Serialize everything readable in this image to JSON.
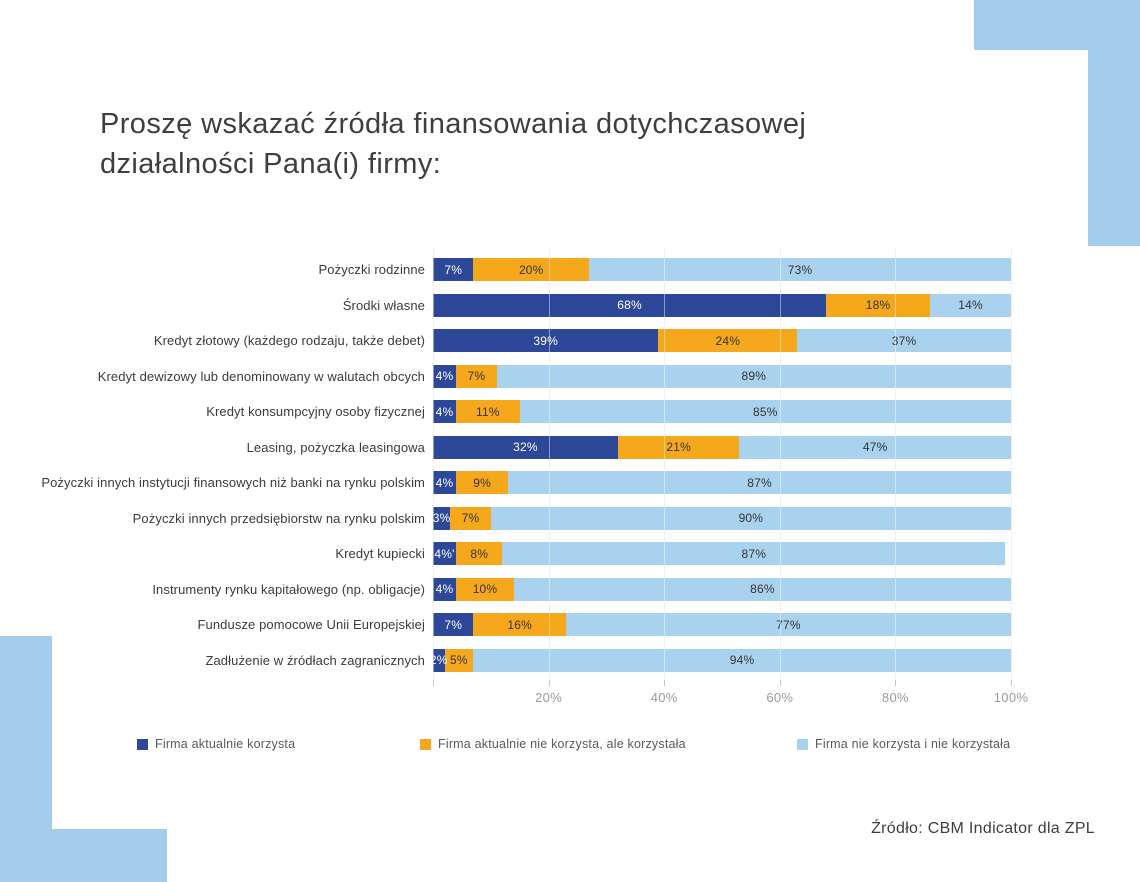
{
  "page": {
    "background": "#ffffff"
  },
  "title_full": "Proszę wskazać źródła finansowania dotychczasowej działalności Pana(i) firmy:",
  "title_lines": [
    "Proszę wskazać źródła finansowania dotychczasowej",
    "działalności Pana(i) firmy:"
  ],
  "source_note": "Źródło: CBM Indicator dla ZPL",
  "colors": {
    "series_current": "#2D4899",
    "series_past": "#F5A81C",
    "series_never": "#A9D2EE",
    "decor_blue": "#A3CDEA",
    "grid": "#E4E4E4",
    "axis_text": "#9B9B9B",
    "category_text": "#3B3B3B"
  },
  "chart_data": {
    "type": "bar",
    "orientation": "horizontal",
    "stacked": true,
    "title": "Proszę wskazać źródła finansowania dotychczasowej działalności Pana(i) firmy:",
    "xlabel": "",
    "ylabel": "",
    "xlim": [
      0,
      100
    ],
    "grid": true,
    "legend_position": "bottom",
    "xtick_values": [
      20,
      40,
      60,
      80,
      100
    ],
    "xtick_labels": [
      "20%",
      "40%",
      "60%",
      "80%",
      "100%"
    ],
    "categories": [
      "Pożyczki rodzinne",
      "Środki własne",
      "Kredyt złotowy (każdego rodzaju, także debet)",
      "Kredyt dewizowy lub denominowany w walutach obcych",
      "Kredyt konsumpcyjny osoby fizycznej",
      "Leasing, pożyczka leasingowa",
      "Pożyczki innych instytucji finansowych niż banki na rynku polskim",
      "Pożyczki innych przedsiębiorstw na rynku polskim",
      "Kredyt kupiecki",
      "Instrumenty rynku kapitałowego (np. obligacje)",
      "Fundusze pomocowe Unii Europejskiej",
      "Zadłużenie w źródłach zagranicznych"
    ],
    "series": [
      {
        "name": "Firma aktualnie korzysta",
        "key": "current",
        "color": "#2D4899",
        "text_color": "#FFFFFF",
        "values": [
          7,
          68,
          39,
          4,
          4,
          32,
          4,
          3,
          4,
          4,
          7,
          2
        ],
        "labels": [
          "7%",
          "68%",
          "39%",
          "4%",
          "4%",
          "32%",
          "4%",
          "3%",
          "4%'",
          "4%",
          "7%",
          "2%"
        ]
      },
      {
        "name": "Firma aktualnie nie korzysta, ale korzystała",
        "key": "past",
        "color": "#F5A81C",
        "text_color": "#333333",
        "values": [
          20,
          18,
          24,
          7,
          11,
          21,
          9,
          7,
          8,
          10,
          16,
          5
        ],
        "labels": [
          "20%",
          "18%",
          "24%",
          "7%",
          "11%",
          "21%",
          "9%",
          "7%",
          "8%",
          "10%",
          "16%",
          "5%"
        ]
      },
      {
        "name": "Firma nie korzysta i nie korzystała",
        "key": "never",
        "color": "#A9D2EE",
        "text_color": "#333333",
        "values": [
          73,
          14,
          37,
          89,
          85,
          47,
          87,
          90,
          87,
          86,
          77,
          94
        ],
        "labels": [
          "73%",
          "14%",
          "37%",
          "89%",
          "85%",
          "47%",
          "87%",
          "90%",
          "87%",
          "86%",
          "77%",
          "94%"
        ]
      }
    ]
  },
  "legend_x_positions": [
    137,
    420,
    797
  ]
}
